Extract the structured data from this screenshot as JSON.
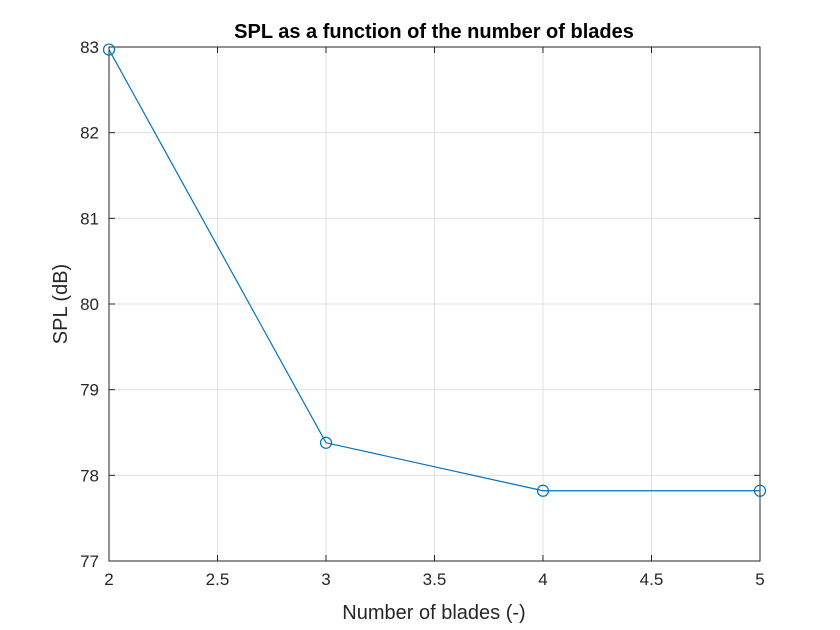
{
  "chart_data": {
    "type": "line",
    "title": "SPL as a function of the number of blades",
    "xlabel": "Number of blades (-)",
    "ylabel": "SPL (dB)",
    "xlim": [
      2,
      5
    ],
    "ylim": [
      77,
      83
    ],
    "xticks": [
      2,
      2.5,
      3,
      3.5,
      4,
      4.5,
      5
    ],
    "xtick_labels": [
      "2",
      "2.5",
      "3",
      "3.5",
      "4",
      "4.5",
      "5"
    ],
    "yticks": [
      77,
      78,
      79,
      80,
      81,
      82,
      83
    ],
    "ytick_labels": [
      "77",
      "78",
      "79",
      "80",
      "81",
      "82",
      "83"
    ],
    "grid": true,
    "series": [
      {
        "x": [
          2,
          3,
          4,
          5
        ],
        "y": [
          82.97,
          78.38,
          77.82,
          77.82
        ],
        "marker": "circle",
        "color": "#0072BD"
      }
    ]
  }
}
